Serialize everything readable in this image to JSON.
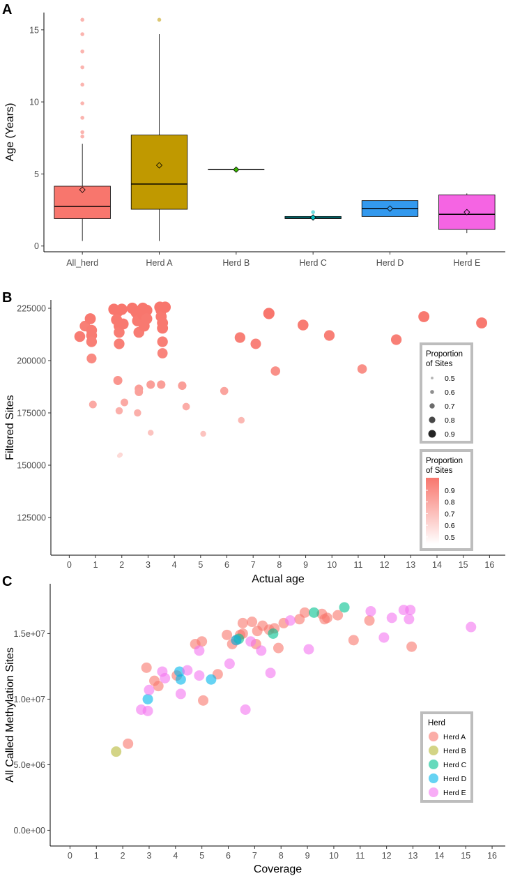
{
  "chart_data": [
    {
      "panel": "A",
      "type": "box",
      "title": "",
      "xlabel": "",
      "ylabel": "Age (Years)",
      "ylim": [
        -0.4,
        16.2
      ],
      "yticks": [
        0,
        5,
        10,
        15
      ],
      "categories": [
        "All_herd",
        "Herd A",
        "Herd B",
        "Herd C",
        "Herd D",
        "Herd E"
      ],
      "colors": [
        "#f8766d",
        "#c09900",
        "#39b600",
        "#00bfc4",
        "#3399ee",
        "#f564e3"
      ],
      "boxes": [
        {
          "name": "All_herd",
          "q1": 1.9,
          "median": 2.75,
          "q3": 4.15,
          "whisker_low": 0.35,
          "whisker_high": 7.1,
          "mean": 3.9,
          "outliers": [
            7.6,
            7.9,
            8.9,
            9.9,
            11.2,
            12.4,
            13.5,
            14.7,
            15.7
          ]
        },
        {
          "name": "Herd A",
          "q1": 2.55,
          "median": 4.3,
          "q3": 7.7,
          "whisker_low": 0.35,
          "whisker_high": 14.7,
          "mean": 5.6,
          "outliers": [
            15.7
          ]
        },
        {
          "name": "Herd B",
          "q1": 5.3,
          "median": 5.3,
          "q3": 5.3,
          "whisker_low": 5.3,
          "whisker_high": 5.3,
          "mean": 5.3,
          "outliers": []
        },
        {
          "name": "Herd C",
          "q1": 1.9,
          "median": 1.95,
          "q3": 2.05,
          "whisker_low": 1.9,
          "whisker_high": 2.05,
          "mean": 1.98,
          "outliers": [
            2.35
          ]
        },
        {
          "name": "Herd D",
          "q1": 2.05,
          "median": 2.6,
          "q3": 3.15,
          "whisker_low": 2.05,
          "whisker_high": 3.15,
          "mean": 2.6,
          "outliers": []
        },
        {
          "name": "Herd E",
          "q1": 1.15,
          "median": 2.2,
          "q3": 3.55,
          "whisker_low": 0.9,
          "whisker_high": 3.65,
          "mean": 2.35,
          "outliers": []
        }
      ]
    },
    {
      "panel": "B",
      "type": "scatter",
      "xlabel": "Actual age",
      "ylabel": "Filtered Sites",
      "xlim": [
        -0.7,
        16.6
      ],
      "ylim": [
        107000,
        229000
      ],
      "xticks": [
        0,
        1,
        2,
        3,
        4,
        5,
        6,
        7,
        8,
        9,
        10,
        11,
        12,
        13,
        14,
        15,
        16
      ],
      "yticks": [
        125000,
        150000,
        175000,
        200000,
        225000
      ],
      "ytick_labels": [
        "125000",
        "150000",
        "175000",
        "200000",
        "225000"
      ],
      "color": "#f8766d",
      "legend_size": {
        "title": "Proportion\nof Sites",
        "labels": [
          "0.5",
          "0.6",
          "0.7",
          "0.8",
          "0.9"
        ]
      },
      "legend_color": {
        "title": "Proportion\nof Sites",
        "labels": [
          "0.9",
          "0.8",
          "0.7",
          "0.6",
          "0.5"
        ]
      },
      "points": [
        {
          "x": 0.4,
          "y": 211500,
          "p": 0.94
        },
        {
          "x": 0.6,
          "y": 216500,
          "p": 0.93
        },
        {
          "x": 0.8,
          "y": 220000,
          "p": 0.95
        },
        {
          "x": 0.85,
          "y": 214500,
          "p": 0.94
        },
        {
          "x": 0.85,
          "y": 212000,
          "p": 0.94
        },
        {
          "x": 0.85,
          "y": 209000,
          "p": 0.93
        },
        {
          "x": 0.85,
          "y": 201000,
          "p": 0.89
        },
        {
          "x": 0.9,
          "y": 179000,
          "p": 0.78
        },
        {
          "x": 1.7,
          "y": 224500,
          "p": 0.96
        },
        {
          "x": 1.85,
          "y": 223500,
          "p": 0.96
        },
        {
          "x": 1.8,
          "y": 219500,
          "p": 0.95
        },
        {
          "x": 1.9,
          "y": 216500,
          "p": 0.95
        },
        {
          "x": 1.9,
          "y": 213500,
          "p": 0.94
        },
        {
          "x": 1.9,
          "y": 208000,
          "p": 0.93
        },
        {
          "x": 1.85,
          "y": 190500,
          "p": 0.85
        },
        {
          "x": 2.0,
          "y": 224500,
          "p": 0.96
        },
        {
          "x": 2.05,
          "y": 217500,
          "p": 0.95
        },
        {
          "x": 1.9,
          "y": 176000,
          "p": 0.76
        },
        {
          "x": 2.1,
          "y": 180000,
          "p": 0.78
        },
        {
          "x": 1.95,
          "y": 155000,
          "p": 0.62
        },
        {
          "x": 1.9,
          "y": 154500,
          "p": 0.61
        },
        {
          "x": 2.4,
          "y": 225000,
          "p": 0.96
        },
        {
          "x": 2.55,
          "y": 223000,
          "p": 0.96
        },
        {
          "x": 2.6,
          "y": 219000,
          "p": 0.95
        },
        {
          "x": 2.65,
          "y": 213500,
          "p": 0.94
        },
        {
          "x": 2.65,
          "y": 186500,
          "p": 0.82
        },
        {
          "x": 2.65,
          "y": 185000,
          "p": 0.81
        },
        {
          "x": 2.6,
          "y": 175000,
          "p": 0.76
        },
        {
          "x": 2.8,
          "y": 225000,
          "p": 0.96
        },
        {
          "x": 2.8,
          "y": 222000,
          "p": 0.96
        },
        {
          "x": 2.85,
          "y": 216500,
          "p": 0.95
        },
        {
          "x": 2.95,
          "y": 224000,
          "p": 0.96
        },
        {
          "x": 2.95,
          "y": 220000,
          "p": 0.95
        },
        {
          "x": 3.1,
          "y": 188500,
          "p": 0.82
        },
        {
          "x": 3.1,
          "y": 165500,
          "p": 0.69
        },
        {
          "x": 3.45,
          "y": 225500,
          "p": 0.96
        },
        {
          "x": 3.5,
          "y": 224000,
          "p": 0.96
        },
        {
          "x": 3.5,
          "y": 221000,
          "p": 0.95
        },
        {
          "x": 3.55,
          "y": 218000,
          "p": 0.95
        },
        {
          "x": 3.55,
          "y": 215500,
          "p": 0.95
        },
        {
          "x": 3.55,
          "y": 209000,
          "p": 0.93
        },
        {
          "x": 3.55,
          "y": 203500,
          "p": 0.91
        },
        {
          "x": 3.5,
          "y": 188500,
          "p": 0.82
        },
        {
          "x": 3.65,
          "y": 225500,
          "p": 0.96
        },
        {
          "x": 4.3,
          "y": 188000,
          "p": 0.82
        },
        {
          "x": 4.45,
          "y": 178000,
          "p": 0.77
        },
        {
          "x": 5.1,
          "y": 165000,
          "p": 0.69
        },
        {
          "x": 5.9,
          "y": 185500,
          "p": 0.8
        },
        {
          "x": 6.5,
          "y": 211000,
          "p": 0.93
        },
        {
          "x": 6.55,
          "y": 171500,
          "p": 0.73
        },
        {
          "x": 7.1,
          "y": 208000,
          "p": 0.92
        },
        {
          "x": 7.6,
          "y": 222500,
          "p": 0.96
        },
        {
          "x": 7.85,
          "y": 195000,
          "p": 0.87
        },
        {
          "x": 8.9,
          "y": 217000,
          "p": 0.94
        },
        {
          "x": 9.9,
          "y": 212000,
          "p": 0.93
        },
        {
          "x": 11.15,
          "y": 196000,
          "p": 0.87
        },
        {
          "x": 12.45,
          "y": 210000,
          "p": 0.93
        },
        {
          "x": 13.5,
          "y": 221000,
          "p": 0.95
        },
        {
          "x": 15.7,
          "y": 218000,
          "p": 0.95
        }
      ]
    },
    {
      "panel": "C",
      "type": "scatter",
      "xlabel": "Coverage",
      "ylabel": "All Called Methylation Sites",
      "xlim": [
        -0.75,
        16.5
      ],
      "ylim": [
        -1200000,
        18800000
      ],
      "xticks": [
        0,
        1,
        2,
        3,
        4,
        5,
        6,
        7,
        8,
        9,
        10,
        11,
        12,
        13,
        14,
        15,
        16
      ],
      "yticks": [
        0,
        5000000,
        10000000,
        15000000
      ],
      "ytick_labels": [
        "0.0e+00",
        "5.0e+06",
        "1.0e+07",
        "1.5e+07"
      ],
      "legend_title": "Herd",
      "series": [
        {
          "name": "Herd A",
          "color": "#f8766d",
          "points": [
            [
              2.2,
              6600000
            ],
            [
              2.9,
              12400000
            ],
            [
              3.2,
              11400000
            ],
            [
              3.35,
              11000000
            ],
            [
              4.05,
              11800000
            ],
            [
              4.75,
              14200000
            ],
            [
              5.0,
              14400000
            ],
            [
              5.05,
              9900000
            ],
            [
              5.6,
              11900000
            ],
            [
              5.95,
              14900000
            ],
            [
              6.15,
              14200000
            ],
            [
              6.3,
              14500000
            ],
            [
              6.45,
              14900000
            ],
            [
              6.55,
              15000000
            ],
            [
              6.55,
              15800000
            ],
            [
              6.9,
              15900000
            ],
            [
              7.05,
              14200000
            ],
            [
              7.1,
              15200000
            ],
            [
              7.3,
              15600000
            ],
            [
              7.55,
              15300000
            ],
            [
              7.75,
              15400000
            ],
            [
              7.9,
              13900000
            ],
            [
              8.1,
              15800000
            ],
            [
              8.7,
              16100000
            ],
            [
              8.9,
              16600000
            ],
            [
              9.55,
              16500000
            ],
            [
              9.65,
              16100000
            ],
            [
              9.75,
              16200000
            ],
            [
              10.15,
              16400000
            ],
            [
              10.75,
              14500000
            ],
            [
              11.35,
              16000000
            ],
            [
              12.95,
              14000000
            ]
          ]
        },
        {
          "name": "Herd B",
          "color": "#b5b735",
          "points": [
            [
              1.75,
              6000000
            ]
          ]
        },
        {
          "name": "Herd C",
          "color": "#00c190",
          "points": [
            [
              6.4,
              14600000
            ],
            [
              7.7,
              15000000
            ],
            [
              9.25,
              16600000
            ],
            [
              10.4,
              17000000
            ]
          ]
        },
        {
          "name": "Herd D",
          "color": "#00b5eb",
          "points": [
            [
              2.95,
              10000000
            ],
            [
              4.15,
              12100000
            ],
            [
              4.2,
              11500000
            ],
            [
              5.35,
              11500000
            ],
            [
              6.3,
              14500000
            ]
          ]
        },
        {
          "name": "Herd E",
          "color": "#f475f0",
          "points": [
            [
              2.7,
              9200000
            ],
            [
              2.95,
              9100000
            ],
            [
              3.0,
              10700000
            ],
            [
              3.5,
              12100000
            ],
            [
              3.6,
              11600000
            ],
            [
              4.2,
              10400000
            ],
            [
              4.45,
              12200000
            ],
            [
              4.9,
              13700000
            ],
            [
              4.9,
              11800000
            ],
            [
              6.05,
              12700000
            ],
            [
              6.65,
              9200000
            ],
            [
              6.85,
              14400000
            ],
            [
              7.25,
              13700000
            ],
            [
              7.6,
              12000000
            ],
            [
              8.35,
              16000000
            ],
            [
              9.05,
              13800000
            ],
            [
              11.4,
              16700000
            ],
            [
              11.9,
              14700000
            ],
            [
              12.2,
              16200000
            ],
            [
              12.65,
              16800000
            ],
            [
              12.85,
              16100000
            ],
            [
              12.9,
              16800000
            ],
            [
              15.2,
              15500000
            ]
          ]
        }
      ]
    }
  ],
  "panel_letters": [
    "A",
    "B",
    "C"
  ]
}
